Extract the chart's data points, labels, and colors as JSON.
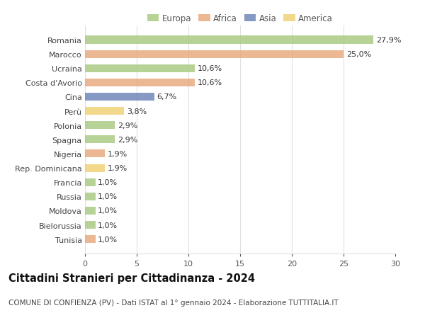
{
  "categories": [
    "Romania",
    "Marocco",
    "Ucraina",
    "Costa d'Avorio",
    "Cina",
    "Perù",
    "Polonia",
    "Spagna",
    "Nigeria",
    "Rep. Dominicana",
    "Francia",
    "Russia",
    "Moldova",
    "Bielorussia",
    "Tunisia"
  ],
  "values": [
    27.9,
    25.0,
    10.6,
    10.6,
    6.7,
    3.8,
    2.9,
    2.9,
    1.9,
    1.9,
    1.0,
    1.0,
    1.0,
    1.0,
    1.0
  ],
  "labels": [
    "27,9%",
    "25,0%",
    "10,6%",
    "10,6%",
    "6,7%",
    "3,8%",
    "2,9%",
    "2,9%",
    "1,9%",
    "1,9%",
    "1,0%",
    "1,0%",
    "1,0%",
    "1,0%",
    "1,0%"
  ],
  "colors": [
    "#a8c97f",
    "#e8a87c",
    "#a8c97f",
    "#e8a87c",
    "#6b82b8",
    "#f0d070",
    "#a8c97f",
    "#a8c97f",
    "#e8a87c",
    "#f0d070",
    "#a8c97f",
    "#a8c97f",
    "#a8c97f",
    "#a8c97f",
    "#e8a87c"
  ],
  "legend": [
    {
      "label": "Europa",
      "color": "#a8c97f"
    },
    {
      "label": "Africa",
      "color": "#e8a87c"
    },
    {
      "label": "Asia",
      "color": "#6b82b8"
    },
    {
      "label": "America",
      "color": "#f0d070"
    }
  ],
  "xlim": [
    0,
    30
  ],
  "xticks": [
    0,
    5,
    10,
    15,
    20,
    25,
    30
  ],
  "title": "Cittadini Stranieri per Cittadinanza - 2024",
  "subtitle": "COMUNE DI CONFIENZA (PV) - Dati ISTAT al 1° gennaio 2024 - Elaborazione TUTTITALIA.IT",
  "bg_color": "#ffffff",
  "grid_color": "#e0e0e0",
  "bar_height": 0.55,
  "label_fontsize": 8,
  "yticklabel_fontsize": 8,
  "xtick_fontsize": 8,
  "title_fontsize": 10.5,
  "subtitle_fontsize": 7.5,
  "legend_fontsize": 8.5
}
